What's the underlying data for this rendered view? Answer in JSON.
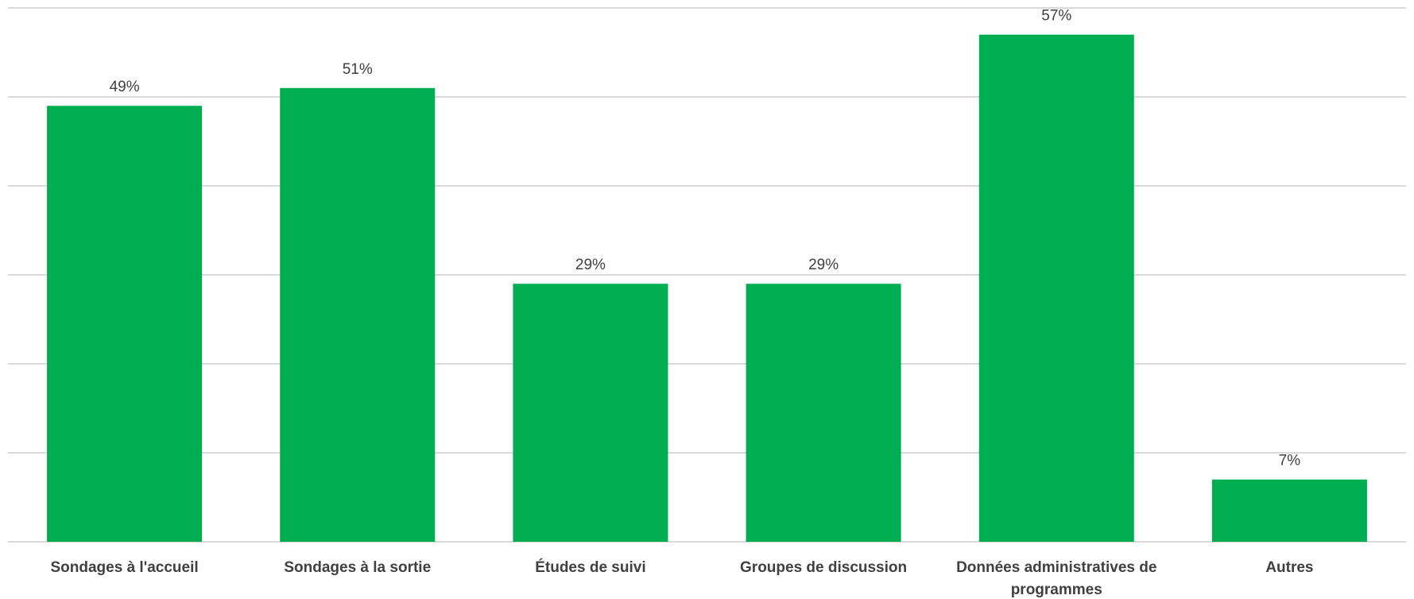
{
  "chart_data": {
    "type": "bar",
    "categories": [
      "Sondages à l'accueil",
      "Sondages à la sortie",
      "Études de suivi",
      "Groupes de discussion",
      "Données administratives de programmes",
      "Autres"
    ],
    "values": [
      49,
      51,
      29,
      29,
      57,
      7
    ],
    "data_labels": [
      "49%",
      "51%",
      "29%",
      "29%",
      "57%",
      "7%"
    ],
    "ylim": [
      0,
      60
    ],
    "grid": true,
    "legend": "none",
    "colors": {
      "bar": "#00ad50",
      "grid": "#d9d9d9",
      "text": "#404040"
    }
  }
}
